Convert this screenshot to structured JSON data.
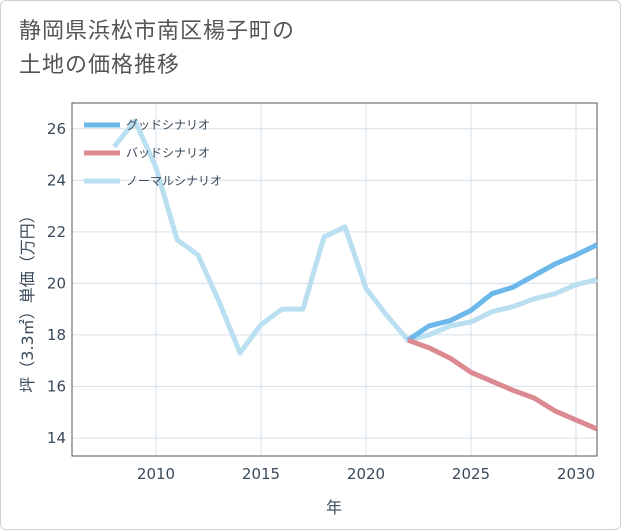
{
  "title_lines": [
    "静岡県浜松市南区楊子町の",
    "土地の価格推移"
  ],
  "chart_data": {
    "type": "line",
    "xlabel": "年",
    "ylabel": "坪（3.3㎡）単価（万円）",
    "xlim": [
      2006,
      2031
    ],
    "ylim": [
      13.3,
      27
    ],
    "x_ticks": [
      2010,
      2015,
      2020,
      2025,
      2030
    ],
    "y_ticks": [
      14,
      16,
      18,
      20,
      22,
      24,
      26
    ],
    "grid": true,
    "legend_position": "top-left",
    "series": [
      {
        "name": "グッドシナリオ",
        "color": "#6cb8ea",
        "x": [
          2022,
          2023,
          2024,
          2025,
          2026,
          2027,
          2028,
          2029,
          2030,
          2031
        ],
        "y": [
          17.8,
          18.35,
          18.55,
          18.95,
          19.6,
          19.85,
          20.3,
          20.75,
          21.1,
          21.5
        ]
      },
      {
        "name": "バッドシナリオ",
        "color": "#dc8a92",
        "x": [
          2022,
          2023,
          2024,
          2025,
          2026,
          2027,
          2028,
          2029,
          2030,
          2031
        ],
        "y": [
          17.8,
          17.5,
          17.1,
          16.55,
          16.2,
          15.85,
          15.55,
          15.05,
          14.7,
          14.35
        ]
      },
      {
        "name": "ノーマルシナリオ",
        "color": "#b9dff0",
        "x": [
          2008,
          2009,
          2010,
          2011,
          2012,
          2013,
          2014,
          2015,
          2016,
          2017,
          2018,
          2019,
          2020,
          2021,
          2022,
          2023,
          2024,
          2025,
          2026,
          2027,
          2028,
          2029,
          2030,
          2031
        ],
        "y": [
          25.3,
          26.3,
          24.5,
          21.7,
          21.1,
          19.3,
          17.3,
          18.4,
          19.0,
          19.0,
          21.8,
          22.2,
          19.8,
          18.75,
          17.8,
          18.0,
          18.35,
          18.5,
          18.9,
          19.1,
          19.4,
          19.6,
          19.95,
          20.15
        ]
      }
    ]
  }
}
